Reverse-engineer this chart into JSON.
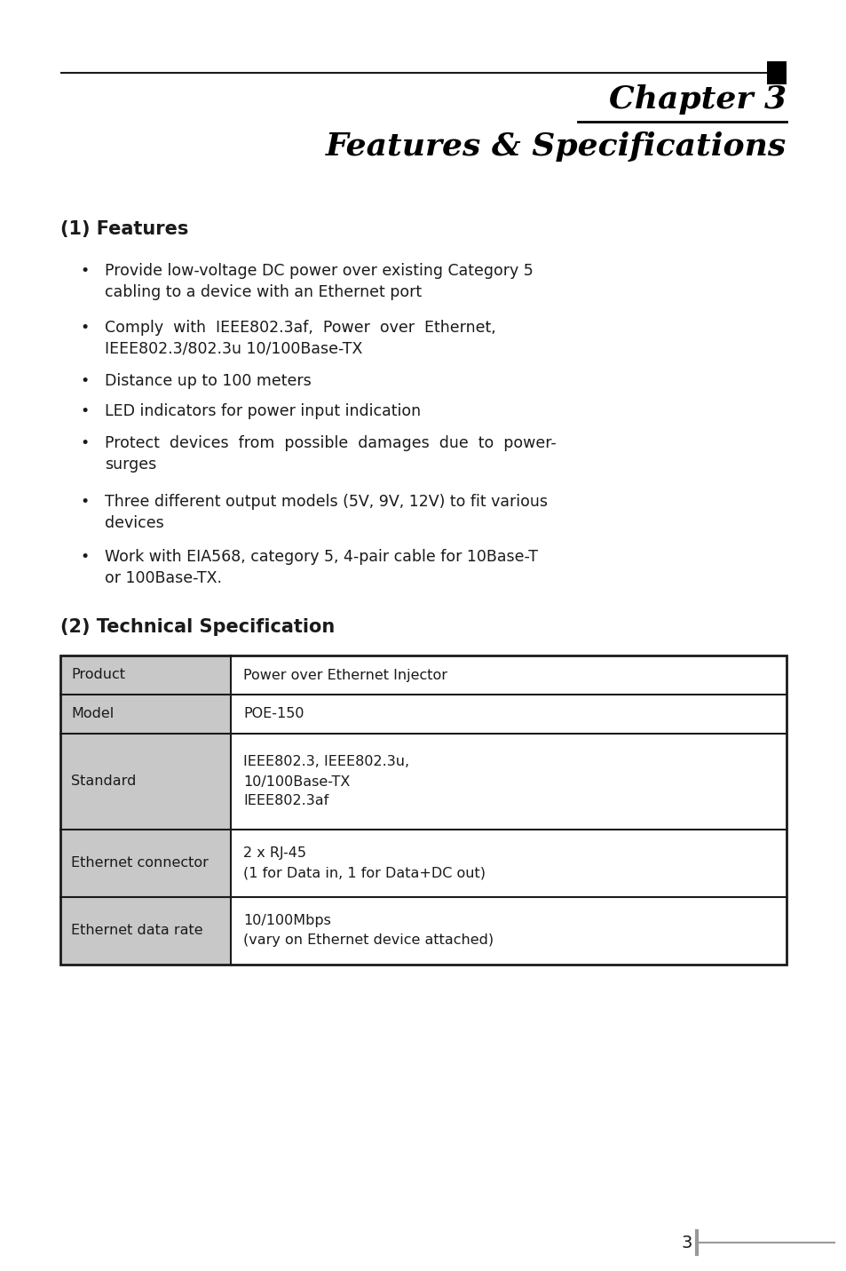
{
  "title_line1": "Chapter 3",
  "title_line2": "Features & Specifications",
  "section1_heading": "(1) Features",
  "bullets": [
    "Provide low-voltage DC power over existing Category 5\ncabling to a device with an Ethernet port",
    "Comply  with  IEEE802.3af,  Power  over  Ethernet,\nIEEE802.3/802.3u 10/100Base-TX",
    "Distance up to 100 meters",
    "LED indicators for power input indication",
    "Protect  devices  from  possible  damages  due  to  power-\nsurges",
    "Three different output models (5V, 9V, 12V) to fit various\ndevices",
    "Work with EIA568, category 5, 4-pair cable for 10Base-T\nor 100Base-TX."
  ],
  "section2_heading": "(2) Technical Specification",
  "table_rows": [
    [
      "Product",
      "Power over Ethernet Injector"
    ],
    [
      "Model",
      "POE-150"
    ],
    [
      "Standard",
      "IEEE802.3, IEEE802.3u,\n10/100Base-TX\nIEEE802.3af"
    ],
    [
      "Ethernet connector",
      "2 x RJ-45\n(1 for Data in, 1 for Data+DC out)"
    ],
    [
      "Ethernet data rate",
      "10/100Mbps\n(vary on Ethernet device attached)"
    ]
  ],
  "page_number": "3",
  "bg_color": "#ffffff",
  "text_color": "#1a1a1a",
  "table_gray_bg": "#c8c8c8",
  "table_border_color": "#1a1a1a",
  "line_color": "#1a1a1a",
  "title_color": "#000000",
  "footer_line_color": "#999999"
}
